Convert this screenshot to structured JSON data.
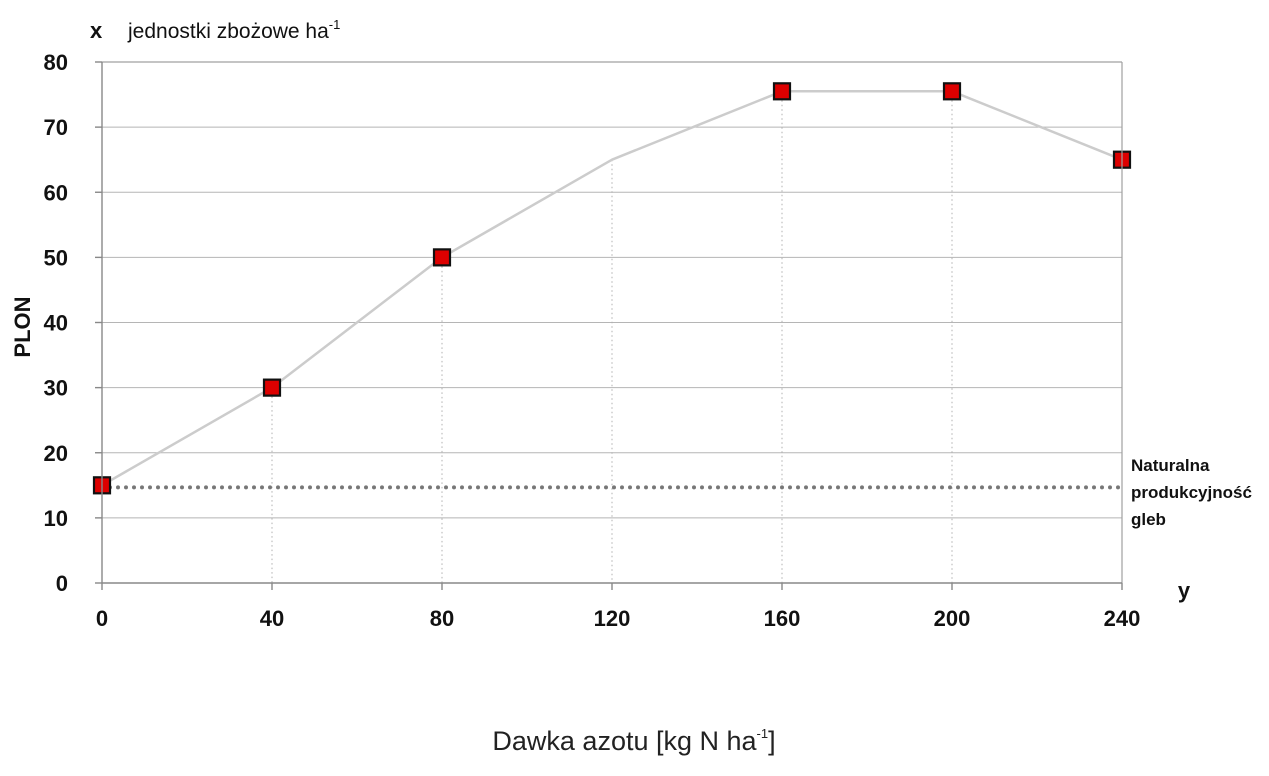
{
  "chart_data": {
    "type": "line",
    "x_unit_marker": "x",
    "unit_label": "jednostki zbożowe ha",
    "unit_label_sup": "-1",
    "ylabel": "PLON",
    "x_end_marker": "y",
    "xlabel": "Dawka azotu [kg N ha",
    "xlabel_sup": "-1",
    "xlabel_end": "]",
    "xlim": [
      0,
      240
    ],
    "ylim": [
      0,
      80
    ],
    "xticks": [
      0,
      40,
      80,
      120,
      160,
      200,
      240
    ],
    "yticks": [
      0,
      10,
      20,
      30,
      40,
      50,
      60,
      70,
      80
    ],
    "grid": true,
    "series": [
      {
        "x": [
          0,
          40,
          80,
          120,
          160,
          200,
          240
        ],
        "y": [
          15,
          30,
          50,
          65,
          75.5,
          75.5,
          65
        ],
        "marked_x": [
          0,
          40,
          80,
          160,
          200,
          240
        ],
        "line_color": "#cccccc",
        "marker_color": "#dd0000"
      }
    ],
    "reference_line": {
      "y": 15,
      "label_lines": [
        "Naturalna",
        "produkcyjność",
        "gleb"
      ],
      "color": "#777777"
    }
  }
}
